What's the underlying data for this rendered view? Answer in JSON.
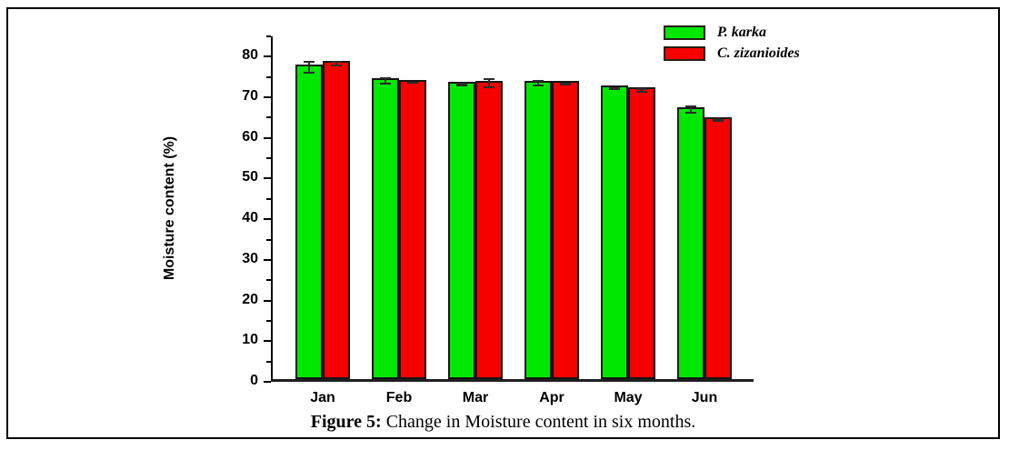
{
  "figure": {
    "caption_prefix": "Figure 5:",
    "caption_text": " Change in Moisture content in six months."
  },
  "chart_data": {
    "type": "bar",
    "title": "",
    "xlabel": "",
    "ylabel": "Moisture content (%)",
    "categories": [
      "Jan",
      "Feb",
      "Mar",
      "Apr",
      "May",
      "Jun"
    ],
    "series": [
      {
        "name": "P. karka",
        "color": "#00e800",
        "values": [
          77.4,
          74.1,
          73.1,
          73.4,
          72.2,
          66.9
        ],
        "errors": [
          1.6,
          0.9,
          0.4,
          0.8,
          0.3,
          1.0
        ]
      },
      {
        "name": "C. zizanioides",
        "color": "#f70000",
        "values": [
          78.3,
          73.6,
          73.4,
          73.3,
          71.7,
          64.4
        ],
        "errors": [
          0.7,
          0.3,
          1.2,
          0.3,
          0.5,
          0.5
        ]
      }
    ],
    "ylim": [
      0,
      85
    ],
    "y_major_ticks": [
      0,
      10,
      20,
      30,
      40,
      50,
      60,
      70,
      80
    ],
    "y_minor_step": 5,
    "grid": false,
    "legend_position": "top-right",
    "bar_border_color": "#141414",
    "error_bar_color": "#2b2b2b",
    "axis_color": "#000000"
  }
}
